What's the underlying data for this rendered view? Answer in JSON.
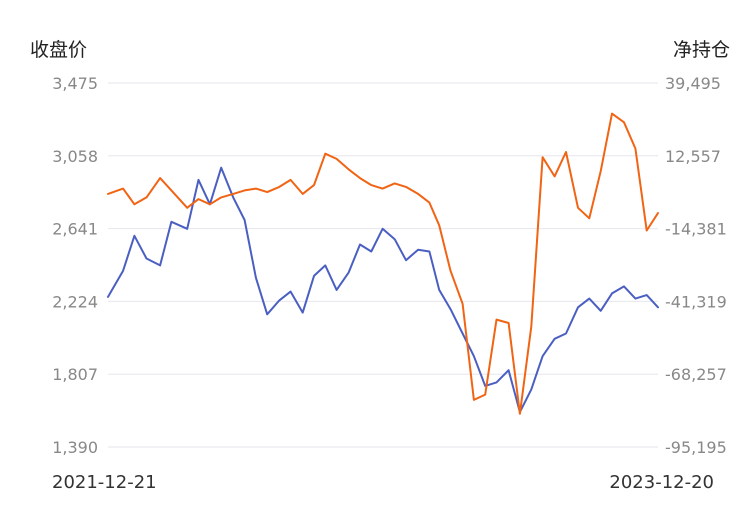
{
  "chart_data": {
    "type": "line",
    "left_axis_title": "收盘价",
    "right_axis_title": "净持仓",
    "y_left_ticks": [
      "3,475",
      "3,058",
      "2,641",
      "2,224",
      "1,807",
      "1,390"
    ],
    "y_right_ticks": [
      "39,495",
      "12,557",
      "-14,381",
      "-41,319",
      "-68,257",
      "-95,195"
    ],
    "y_left_range": [
      1390,
      3475
    ],
    "y_right_range": [
      -95195,
      39495
    ],
    "x_labels": [
      "2021-12-21",
      "2023-12-20"
    ],
    "x_range": [
      "2021-12-21",
      "2023-12-20"
    ],
    "grid": true,
    "colors": {
      "close": "#4a5fc1",
      "net": "#f06414"
    },
    "series": [
      {
        "key": "close",
        "axis": "left",
        "x": [
          "2021-12-21",
          "2022-01-10",
          "2022-01-25",
          "2022-02-10",
          "2022-02-28",
          "2022-03-15",
          "2022-04-05",
          "2022-04-20",
          "2022-05-05",
          "2022-05-20",
          "2022-06-05",
          "2022-06-20",
          "2022-07-05",
          "2022-07-20",
          "2022-08-05",
          "2022-08-20",
          "2022-09-05",
          "2022-09-20",
          "2022-10-05",
          "2022-10-20",
          "2022-11-05",
          "2022-11-20",
          "2022-12-05",
          "2022-12-20",
          "2023-01-05",
          "2023-01-20",
          "2023-02-05",
          "2023-02-20",
          "2023-03-05",
          "2023-03-20",
          "2023-04-05",
          "2023-04-20",
          "2023-05-05",
          "2023-05-20",
          "2023-06-05",
          "2023-06-20",
          "2023-07-05",
          "2023-07-20",
          "2023-08-05",
          "2023-08-20",
          "2023-09-05",
          "2023-09-20",
          "2023-10-05",
          "2023-10-20",
          "2023-11-05",
          "2023-11-20",
          "2023-12-05",
          "2023-12-20"
        ],
        "values": [
          2250,
          2400,
          2600,
          2470,
          2430,
          2680,
          2640,
          2920,
          2780,
          2990,
          2820,
          2690,
          2360,
          2150,
          2230,
          2280,
          2160,
          2370,
          2430,
          2290,
          2390,
          2550,
          2510,
          2640,
          2580,
          2460,
          2520,
          2510,
          2290,
          2180,
          2040,
          1910,
          1740,
          1760,
          1830,
          1590,
          1720,
          1910,
          2010,
          2040,
          2190,
          2240,
          2170,
          2270,
          2310,
          2240,
          2260,
          2190
        ]
      },
      {
        "key": "net",
        "axis": "left",
        "x": [
          "2021-12-21",
          "2022-01-10",
          "2022-01-25",
          "2022-02-10",
          "2022-02-28",
          "2022-03-15",
          "2022-04-05",
          "2022-04-20",
          "2022-05-05",
          "2022-05-20",
          "2022-06-05",
          "2022-06-20",
          "2022-07-05",
          "2022-07-20",
          "2022-08-05",
          "2022-08-20",
          "2022-09-05",
          "2022-09-20",
          "2022-10-05",
          "2022-10-20",
          "2022-11-05",
          "2022-11-20",
          "2022-12-05",
          "2022-12-20",
          "2023-01-05",
          "2023-01-20",
          "2023-02-05",
          "2023-02-20",
          "2023-03-05",
          "2023-03-20",
          "2023-04-05",
          "2023-04-20",
          "2023-05-05",
          "2023-05-20",
          "2023-06-05",
          "2023-06-20",
          "2023-07-05",
          "2023-07-20",
          "2023-08-05",
          "2023-08-20",
          "2023-09-05",
          "2023-09-20",
          "2023-10-05",
          "2023-10-20",
          "2023-11-05",
          "2023-11-20",
          "2023-12-05",
          "2023-12-20"
        ],
        "values": [
          2840,
          2870,
          2780,
          2820,
          2930,
          2860,
          2760,
          2810,
          2780,
          2820,
          2840,
          2860,
          2870,
          2850,
          2880,
          2920,
          2840,
          2890,
          3070,
          3040,
          2980,
          2930,
          2890,
          2870,
          2900,
          2880,
          2840,
          2790,
          2660,
          2400,
          2210,
          1660,
          1690,
          2120,
          2100,
          1580,
          2080,
          3050,
          2940,
          3080,
          2760,
          2700,
          2970,
          3300,
          3250,
          3100,
          2630,
          2730
        ]
      }
    ]
  }
}
